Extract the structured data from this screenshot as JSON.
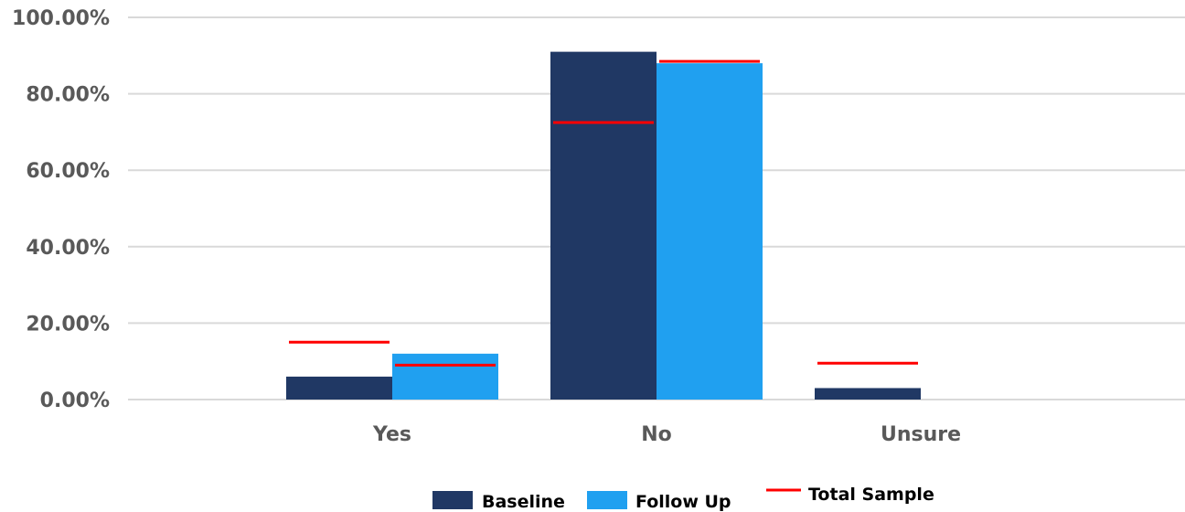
{
  "chart_data": {
    "type": "bar",
    "title": "",
    "xlabel": "",
    "ylabel": "",
    "categories": [
      "Yes",
      "No",
      "Unsure"
    ],
    "ylim": [
      0,
      100
    ],
    "yticks": [
      "0.00%",
      "20.00%",
      "40.00%",
      "60.00%",
      "80.00%",
      "100.00%"
    ],
    "grid": true,
    "legend_position": "bottom",
    "series": [
      {
        "name": "Baseline",
        "kind": "bar",
        "color": "#203864",
        "values": [
          6.0,
          91.0,
          3.0
        ]
      },
      {
        "name": "Follow Up",
        "kind": "bar",
        "color": "#20A0F0",
        "values": [
          12.0,
          88.0,
          0.0
        ]
      }
    ],
    "markers": {
      "name": "Total Sample",
      "kind": "line-marker",
      "color": "#FF0000",
      "groups": [
        {
          "category": "Yes",
          "baseline": 15.0,
          "follow_up": 9.0
        },
        {
          "category": "No",
          "baseline": 72.5,
          "follow_up": 88.5
        },
        {
          "category": "Unsure",
          "baseline": 9.5,
          "follow_up": null
        }
      ]
    }
  }
}
